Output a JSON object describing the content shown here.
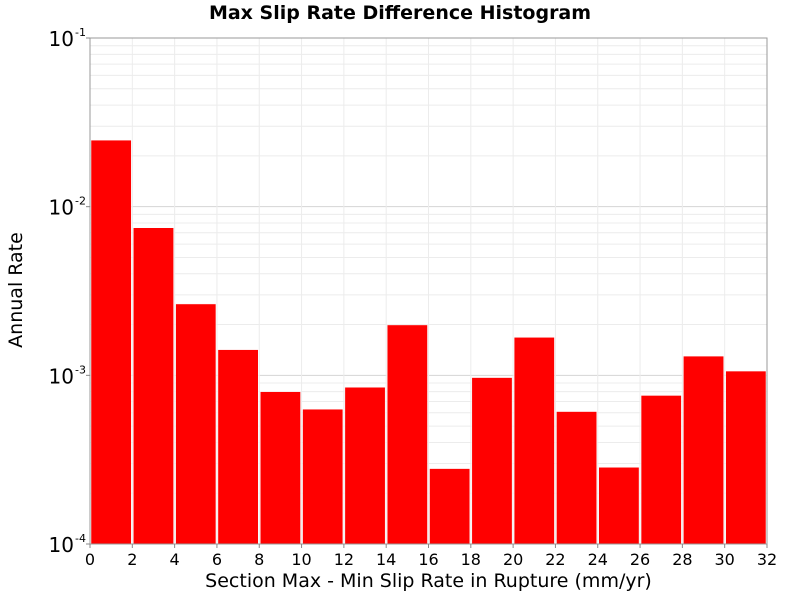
{
  "chart_data": {
    "type": "bar",
    "title": "Max Slip Rate Difference Histogram",
    "xlabel": "Section Max - Min Slip Rate in Rupture (mm/yr)",
    "ylabel": "Annual Rate",
    "y_scale": "log",
    "xlim": [
      0,
      32
    ],
    "ylim": [
      0.0001,
      0.1
    ],
    "x_ticks": [
      "0",
      "2",
      "4",
      "6",
      "8",
      "10",
      "12",
      "14",
      "16",
      "18",
      "20",
      "22",
      "24",
      "26",
      "28",
      "30",
      "32"
    ],
    "y_ticks": [
      {
        "base": "10",
        "exp": "-4",
        "value": 0.0001
      },
      {
        "base": "10",
        "exp": "-3",
        "value": 0.001
      },
      {
        "base": "10",
        "exp": "-2",
        "value": 0.01
      },
      {
        "base": "10",
        "exp": "-1",
        "value": 0.1
      }
    ],
    "bin_width": 2,
    "bins": [
      {
        "x_start": 0,
        "value": 0.0248
      },
      {
        "x_start": 2,
        "value": 0.0075
      },
      {
        "x_start": 4,
        "value": 0.00265
      },
      {
        "x_start": 6,
        "value": 0.00142
      },
      {
        "x_start": 8,
        "value": 0.0008
      },
      {
        "x_start": 10,
        "value": 0.00063
      },
      {
        "x_start": 12,
        "value": 0.00085
      },
      {
        "x_start": 14,
        "value": 0.00199
      },
      {
        "x_start": 16,
        "value": 0.00028
      },
      {
        "x_start": 18,
        "value": 0.00097
      },
      {
        "x_start": 20,
        "value": 0.00168
      },
      {
        "x_start": 22,
        "value": 0.00061
      },
      {
        "x_start": 24,
        "value": 0.000285
      },
      {
        "x_start": 26,
        "value": 0.00076
      },
      {
        "x_start": 28,
        "value": 0.0013
      },
      {
        "x_start": 30,
        "value": 0.00106
      }
    ],
    "bar_color": "#ff0000",
    "grid": true
  }
}
